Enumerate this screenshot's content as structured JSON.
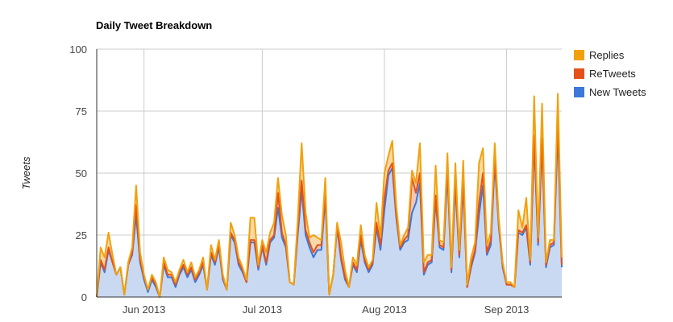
{
  "chart_data": {
    "type": "area",
    "title": "Daily Tweet Breakdown",
    "xlabel": "",
    "ylabel": "Tweets",
    "ylim": [
      0,
      100
    ],
    "yticks": [
      0,
      25,
      50,
      75,
      100
    ],
    "grid": true,
    "legend_position": "right",
    "x_start": "2013-05-20",
    "x_ticks": [
      {
        "date": "2013-06-01",
        "label": "Jun 2013"
      },
      {
        "date": "2013-07-01",
        "label": "Jul 2013"
      },
      {
        "date": "2013-08-01",
        "label": "Aug 2013"
      },
      {
        "date": "2013-09-01",
        "label": "Sep 2013"
      }
    ],
    "series": [
      {
        "name": "New Tweets",
        "color": "#3c78d8",
        "fill": "#c9d9f2",
        "values": [
          0,
          14,
          10,
          19,
          14,
          9,
          12,
          1,
          13,
          17,
          33,
          14,
          7,
          2,
          7,
          4,
          0,
          13,
          8,
          8,
          4,
          9,
          12,
          8,
          11,
          6,
          9,
          13,
          3,
          17,
          13,
          20,
          7,
          3,
          25,
          22,
          13,
          10,
          6,
          22,
          22,
          11,
          20,
          13,
          22,
          24,
          36,
          24,
          20,
          6,
          5,
          25,
          43,
          25,
          20,
          16,
          19,
          19,
          40,
          1,
          9,
          28,
          15,
          7,
          4,
          13,
          10,
          23,
          14,
          10,
          13,
          28,
          19,
          35,
          49,
          52,
          32,
          19,
          22,
          23,
          34,
          38,
          46,
          9,
          13,
          14,
          39,
          20,
          19,
          50,
          10,
          45,
          16,
          45,
          4,
          12,
          18,
          33,
          45,
          17,
          21,
          54,
          29,
          12,
          5,
          5,
          4,
          26,
          25,
          28,
          13,
          63,
          21,
          62,
          12,
          20,
          21,
          67,
          12
        ]
      },
      {
        "name": "ReTweets",
        "color": "#e6501a",
        "fill": "#f4c6b6",
        "values": [
          0,
          1,
          1,
          1,
          0,
          0,
          0,
          0,
          0,
          1,
          4,
          1,
          1,
          1,
          1,
          1,
          0,
          1,
          1,
          1,
          1,
          1,
          1,
          1,
          1,
          1,
          1,
          1,
          0,
          1,
          1,
          1,
          1,
          0,
          1,
          1,
          1,
          1,
          0,
          1,
          1,
          1,
          1,
          1,
          1,
          1,
          6,
          2,
          1,
          0,
          0,
          2,
          4,
          2,
          2,
          2,
          2,
          2,
          2,
          0,
          0,
          1,
          1,
          1,
          0,
          1,
          1,
          2,
          1,
          1,
          1,
          2,
          2,
          5,
          2,
          2,
          1,
          1,
          1,
          2,
          14,
          4,
          4,
          1,
          1,
          1,
          2,
          1,
          1,
          2,
          1,
          2,
          1,
          2,
          0,
          1,
          1,
          5,
          5,
          1,
          2,
          2,
          1,
          1,
          0,
          0,
          0,
          1,
          1,
          1,
          1,
          2,
          1,
          2,
          1,
          1,
          1,
          5,
          1
        ]
      },
      {
        "name": "Replies",
        "color": "#f2a10c",
        "fill": "#f6d9a8",
        "values": [
          0,
          5,
          5,
          6,
          3,
          0,
          0,
          0,
          1,
          2,
          8,
          3,
          1,
          0,
          1,
          1,
          0,
          2,
          2,
          1,
          1,
          1,
          2,
          1,
          2,
          1,
          1,
          2,
          0,
          3,
          1,
          2,
          1,
          0,
          4,
          2,
          2,
          1,
          1,
          9,
          9,
          1,
          2,
          4,
          3,
          5,
          6,
          7,
          4,
          0,
          0,
          4,
          15,
          7,
          2,
          7,
          3,
          2,
          6,
          0,
          0,
          1,
          6,
          3,
          0,
          2,
          2,
          4,
          2,
          1,
          1,
          8,
          3,
          10,
          6,
          9,
          4,
          1,
          2,
          3,
          3,
          4,
          12,
          4,
          3,
          2,
          12,
          2,
          2,
          6,
          1,
          7,
          2,
          8,
          1,
          3,
          3,
          16,
          10,
          3,
          3,
          6,
          2,
          1,
          1,
          1,
          0,
          8,
          2,
          11,
          1,
          16,
          2,
          14,
          1,
          2,
          1,
          10,
          3
        ]
      }
    ]
  }
}
